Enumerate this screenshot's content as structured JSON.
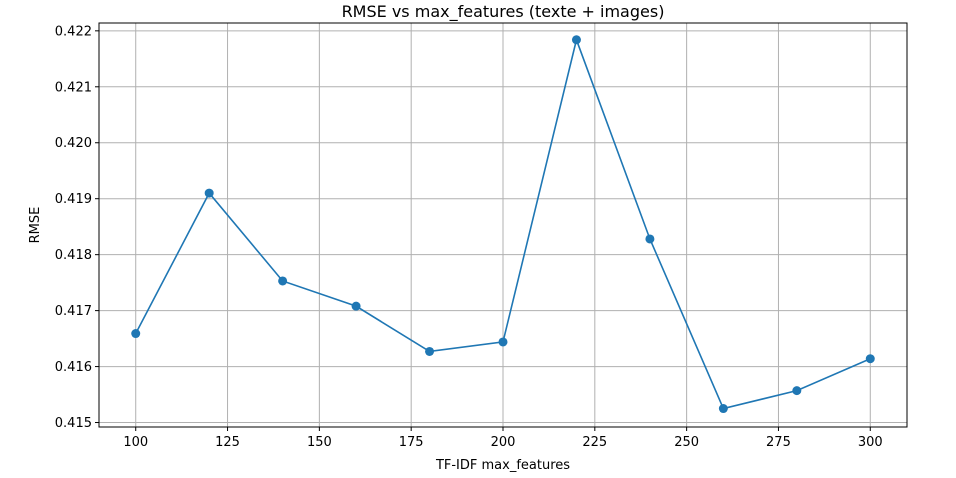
{
  "chart_data": {
    "type": "line",
    "title": "RMSE vs max_features (texte + images)",
    "xlabel": "TF-IDF max_features",
    "ylabel": "RMSE",
    "xlim": [
      90,
      310
    ],
    "ylim": [
      0.41492,
      0.42214
    ],
    "xticks": [
      100,
      125,
      150,
      175,
      200,
      225,
      250,
      275,
      300
    ],
    "xtick_labels": [
      "100",
      "125",
      "150",
      "175",
      "200",
      "225",
      "250",
      "275",
      "300"
    ],
    "yticks": [
      0.415,
      0.416,
      0.417,
      0.418,
      0.419,
      0.42,
      0.421,
      0.422
    ],
    "ytick_labels": [
      "0.415",
      "0.416",
      "0.417",
      "0.418",
      "0.419",
      "0.420",
      "0.421",
      "0.422"
    ],
    "grid": true,
    "color": "#1f77b4",
    "series": [
      {
        "name": "RMSE",
        "x": [
          100,
          120,
          140,
          160,
          180,
          200,
          220,
          240,
          260,
          280,
          300
        ],
        "y": [
          0.41659,
          0.4191,
          0.41753,
          0.41708,
          0.41627,
          0.41644,
          0.42184,
          0.41828,
          0.41525,
          0.41557,
          0.41614
        ]
      }
    ]
  }
}
